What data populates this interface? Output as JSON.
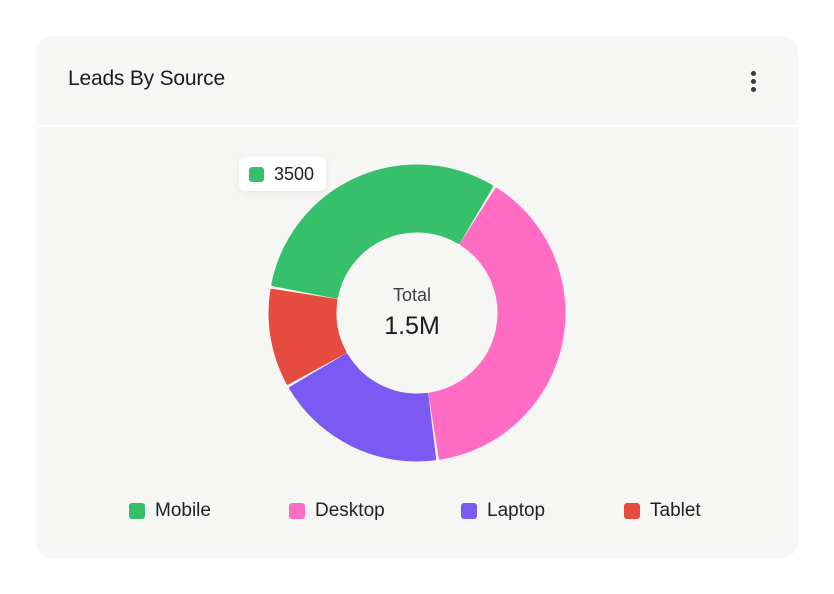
{
  "card": {
    "title": "Leads By Source",
    "more_icon": "more-vertical-icon"
  },
  "chart_data": {
    "type": "pie",
    "subtype": "donut",
    "title": "Leads By Source",
    "center_label": "Total",
    "center_value": "1.5M",
    "categories": [
      "Mobile",
      "Desktop",
      "Laptop",
      "Tablet"
    ],
    "values": [
      31,
      39,
      19,
      11
    ],
    "colors": [
      "#37c06b",
      "#ff6cc4",
      "#7c59f3",
      "#e54b3f"
    ],
    "tooltip": {
      "category": "Mobile",
      "value": "3500",
      "color": "#37c06b"
    },
    "legend_position": "bottom"
  }
}
